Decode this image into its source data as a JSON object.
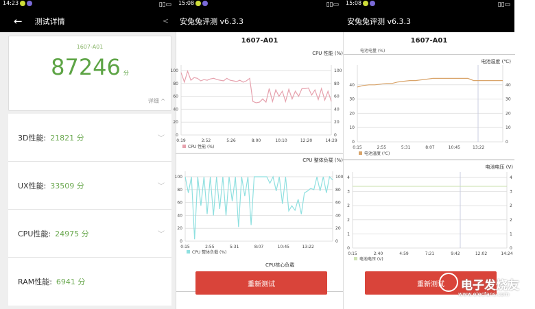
{
  "panel1": {
    "time": "14:23",
    "title": "测试详情",
    "device": "1607-A01",
    "score": "87246",
    "unit": "分",
    "detail": "详细 ^",
    "rows": [
      {
        "label": "3D性能:",
        "value": "21821 分"
      },
      {
        "label": "UX性能:",
        "value": "33509 分"
      },
      {
        "label": "CPU性能:",
        "value": "24975 分"
      },
      {
        "label": "RAM性能:",
        "value": "6941 分"
      }
    ]
  },
  "panel2": {
    "time": "15:08",
    "title": "安兔兔评测 v6.3.3",
    "device": "1607-A01",
    "button": "重新测试",
    "next_chart": "CPU核心负载"
  },
  "panel3": {
    "time": "15:08",
    "title": "安兔兔评测 v6.3.3",
    "device": "1607-A01",
    "button": "重新测试",
    "prev_legend": "电池电量 (%)"
  },
  "watermark": {
    "text": "电子发烧友",
    "url": "www.elecfans.com"
  },
  "colors": {
    "accent": "#6aa84f",
    "button": "#d9443a",
    "cpu_perf": "#e6a1ad",
    "cpu_load": "#8fe0e0",
    "temp": "#d9a46a",
    "voltage": "#cfe3b5"
  },
  "chart_data": [
    {
      "type": "line",
      "title": "CPU 性能 (%)",
      "legend": "CPU 性能 (%)",
      "ylim": [
        0,
        100
      ],
      "yticks": [
        "0",
        "20",
        "40",
        "60",
        "80",
        "100"
      ],
      "xticks": [
        "0:19",
        "2:52",
        "5:26",
        "8:00",
        "10:10",
        "12:20",
        "14:29"
      ],
      "values": [
        97,
        82,
        99,
        85,
        89,
        88,
        84,
        86,
        85,
        87,
        88,
        86,
        85,
        84,
        88,
        85,
        84,
        83,
        85,
        82,
        84,
        88,
        52,
        50,
        51,
        56,
        51,
        72,
        52,
        70,
        60,
        68,
        52,
        71,
        56,
        68,
        60,
        72,
        72,
        73,
        62,
        70,
        55,
        72,
        54,
        68,
        52
      ]
    },
    {
      "type": "line",
      "title": "CPU 整体负载 (%)",
      "legend": "CPU 整体负载 (%)",
      "ylim": [
        0,
        100
      ],
      "yticks": [
        "0",
        "20",
        "40",
        "60",
        "80",
        "100"
      ],
      "xticks": [
        "0:15",
        "2:55",
        "5:31",
        "8:07",
        "10:45",
        "13:22"
      ],
      "values": [
        100,
        75,
        100,
        3,
        100,
        55,
        100,
        42,
        100,
        40,
        100,
        50,
        100,
        40,
        100,
        62,
        100,
        22,
        100,
        70,
        100,
        25,
        100,
        100,
        100,
        100,
        100,
        90,
        100,
        78,
        100,
        58,
        100,
        47,
        55,
        48,
        65,
        42,
        75,
        78,
        82,
        80,
        100,
        78,
        100,
        75,
        100,
        95
      ]
    },
    {
      "type": "line",
      "title": "电池温度 (℃)",
      "legend": "电池温度 (℃)",
      "ylim": [
        0,
        50
      ],
      "yticks": [
        "0",
        "10",
        "20",
        "30",
        "40"
      ],
      "xticks": [
        "0:15",
        "2:55",
        "5:31",
        "8:07",
        "10:45",
        "13:22"
      ],
      "values": [
        38.5,
        39.5,
        40,
        40,
        40.5,
        41,
        41,
        42,
        42.5,
        43,
        43,
        43.5,
        44,
        44.5,
        44.5,
        44.5,
        44.5,
        44.5,
        44.5,
        44.5,
        43,
        43,
        43,
        43,
        43,
        43
      ]
    },
    {
      "type": "line",
      "title": "电池电压 (V)",
      "legend": "电池电压 (V)",
      "ylim": [
        0,
        4
      ],
      "yticks": [
        "0",
        "1",
        "2",
        "2",
        "3",
        "4"
      ],
      "xticks": [
        "0:15",
        "2:40",
        "4:59",
        "7:21",
        "9:42",
        "12:02",
        "14:24"
      ],
      "values": [
        3.5,
        3.5,
        3.5,
        3.5,
        3.5,
        3.5,
        3.5,
        3.5,
        3.5,
        3.5
      ]
    }
  ]
}
